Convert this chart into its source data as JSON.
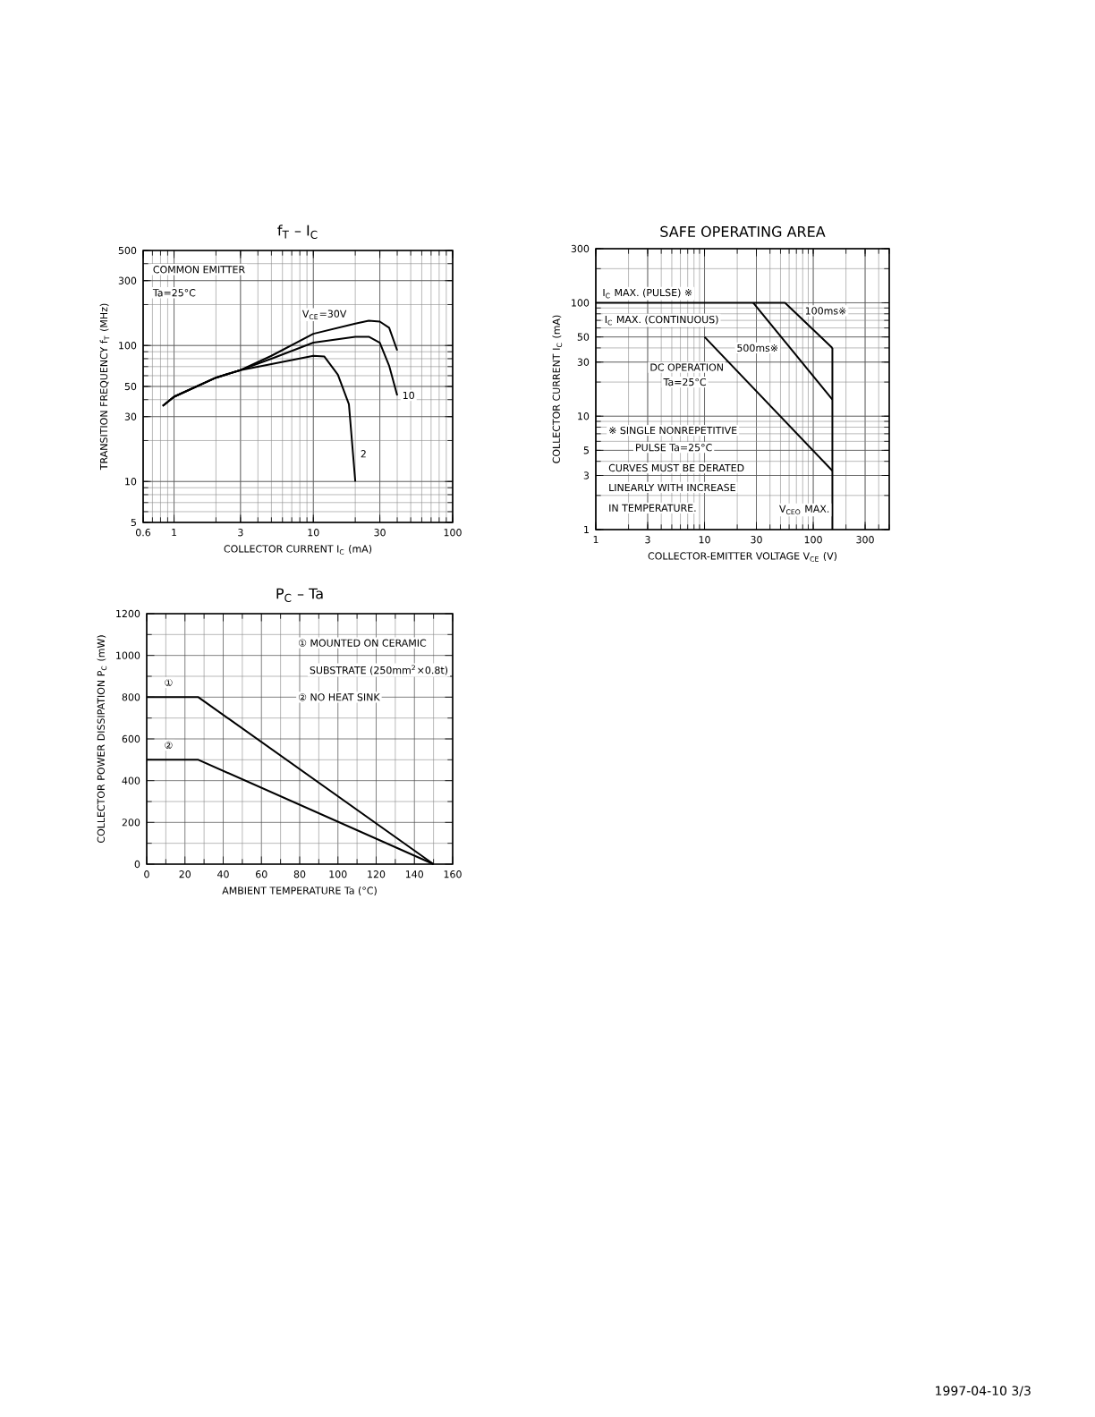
{
  "chart_data": [
    {
      "type": "line",
      "title": "f$_{T}$ – I$_{C}$",
      "xlabel": "COLLECTOR CURRENT   I$_{C}$   (mA)",
      "ylabel": "TRANSITION FREQUENCY   f$_{T}$   (MHz)",
      "log": "xy",
      "grid": true,
      "line_style": "solid",
      "xlim": [
        0.6,
        100
      ],
      "xticks": [
        0.6,
        1,
        3,
        10,
        30,
        100
      ],
      "ylim": [
        5,
        500
      ],
      "yticks": [
        5,
        10,
        30,
        50,
        100,
        300,
        500
      ],
      "annotations": [
        "COMMON EMITTER",
        "Ta=25°C"
      ],
      "series": [
        {
          "name": "V$_{CE}$=30V",
          "color": "#000000",
          "x": [
            0.83,
            1,
            2,
            3,
            5,
            10,
            20,
            25,
            30,
            35,
            40
          ],
          "values": [
            36,
            42,
            58,
            66,
            84,
            122,
            145,
            152,
            150,
            135,
            92
          ]
        },
        {
          "name": "10",
          "color": "#000000",
          "x": [
            0.83,
            1,
            2,
            3,
            5,
            10,
            20,
            25,
            30,
            35,
            40
          ],
          "values": [
            36,
            42,
            58,
            66,
            80,
            105,
            116,
            116,
            105,
            71,
            43
          ]
        },
        {
          "name": "2",
          "color": "#000000",
          "x": [
            0.83,
            1,
            2,
            3,
            5,
            10,
            12,
            15,
            18,
            20
          ],
          "values": [
            36,
            42,
            58,
            66,
            73,
            84,
            83,
            61,
            37,
            10
          ]
        }
      ]
    },
    {
      "type": "line",
      "title": "SAFE OPERATING AREA",
      "xlabel": "COLLECTOR-EMITTER VOLTAGE   V$_{CE}$   (V)",
      "ylabel": "COLLECTOR CURRENT   I$_{C}$   (mA)",
      "log": "xy",
      "grid": true,
      "line_style": "solid",
      "xlim": [
        1,
        500
      ],
      "xticks": [
        1,
        3,
        10,
        30,
        100,
        300
      ],
      "ylim": [
        1,
        300
      ],
      "yticks": [
        1,
        3,
        5,
        10,
        30,
        50,
        100,
        300
      ],
      "annotations": [
        {
          "text": "I$_{C}$ MAX. (PULSE) ※",
          "x": 1,
          "y": 100
        },
        "I$_{C}$ MAX. (CONTINUOUS)",
        "Ta=25°C",
        "※  SINGLE NONREPETITIVE",
        "PULSE Ta=25°C",
        "CURVES MUST BE DERATED",
        "LINEARLY WITH INCREASE",
        "IN TEMPERATURE.",
        "1997-04-10   3/3"
      ],
      "series": [
        {
          "name": "100ms※",
          "color": "#000000",
          "x": [
            1,
            55,
            150
          ],
          "values": [
            100,
            100,
            40
          ]
        },
        {
          "name": "500ms※",
          "color": "#000000",
          "x": [
            28,
            150
          ],
          "values": [
            100,
            14
          ]
        },
        {
          "name": "DC OPERATION",
          "color": "#000000",
          "x": [
            10,
            150
          ],
          "values": [
            50,
            3.3
          ]
        },
        {
          "name": "V$_{CEO}$ MAX.",
          "color": "#000000",
          "x": [
            150,
            150
          ],
          "values": [
            40,
            1
          ]
        }
      ]
    },
    {
      "type": "line",
      "title": "P$_{C}$ – Ta",
      "xlabel": "AMBIENT TEMPERATURE   Ta   (°C)",
      "ylabel": "COLLECTOR POWER DISSIPATION P$_{C}$ (mW)",
      "grid": true,
      "line_style": "solid",
      "xlim": [
        0,
        160
      ],
      "xticks": [
        0,
        20,
        40,
        60,
        80,
        100,
        120,
        140,
        160
      ],
      "ylim": [
        0,
        1200
      ],
      "yticks": [
        0,
        200,
        400,
        600,
        800,
        1000,
        1200
      ],
      "annotations": [
        "①  MOUNTED ON CERAMIC",
        "SUBSTRATE (250mm$^{2}$×0.8t)",
        "②  NO HEAT SINK"
      ],
      "series": [
        {
          "name": "①",
          "color": "#000000",
          "x": [
            0,
            27,
            150
          ],
          "values": [
            800,
            800,
            0
          ]
        },
        {
          "name": "②",
          "color": "#000000",
          "x": [
            0,
            27,
            150
          ],
          "values": [
            500,
            500,
            0
          ]
        }
      ]
    }
  ]
}
